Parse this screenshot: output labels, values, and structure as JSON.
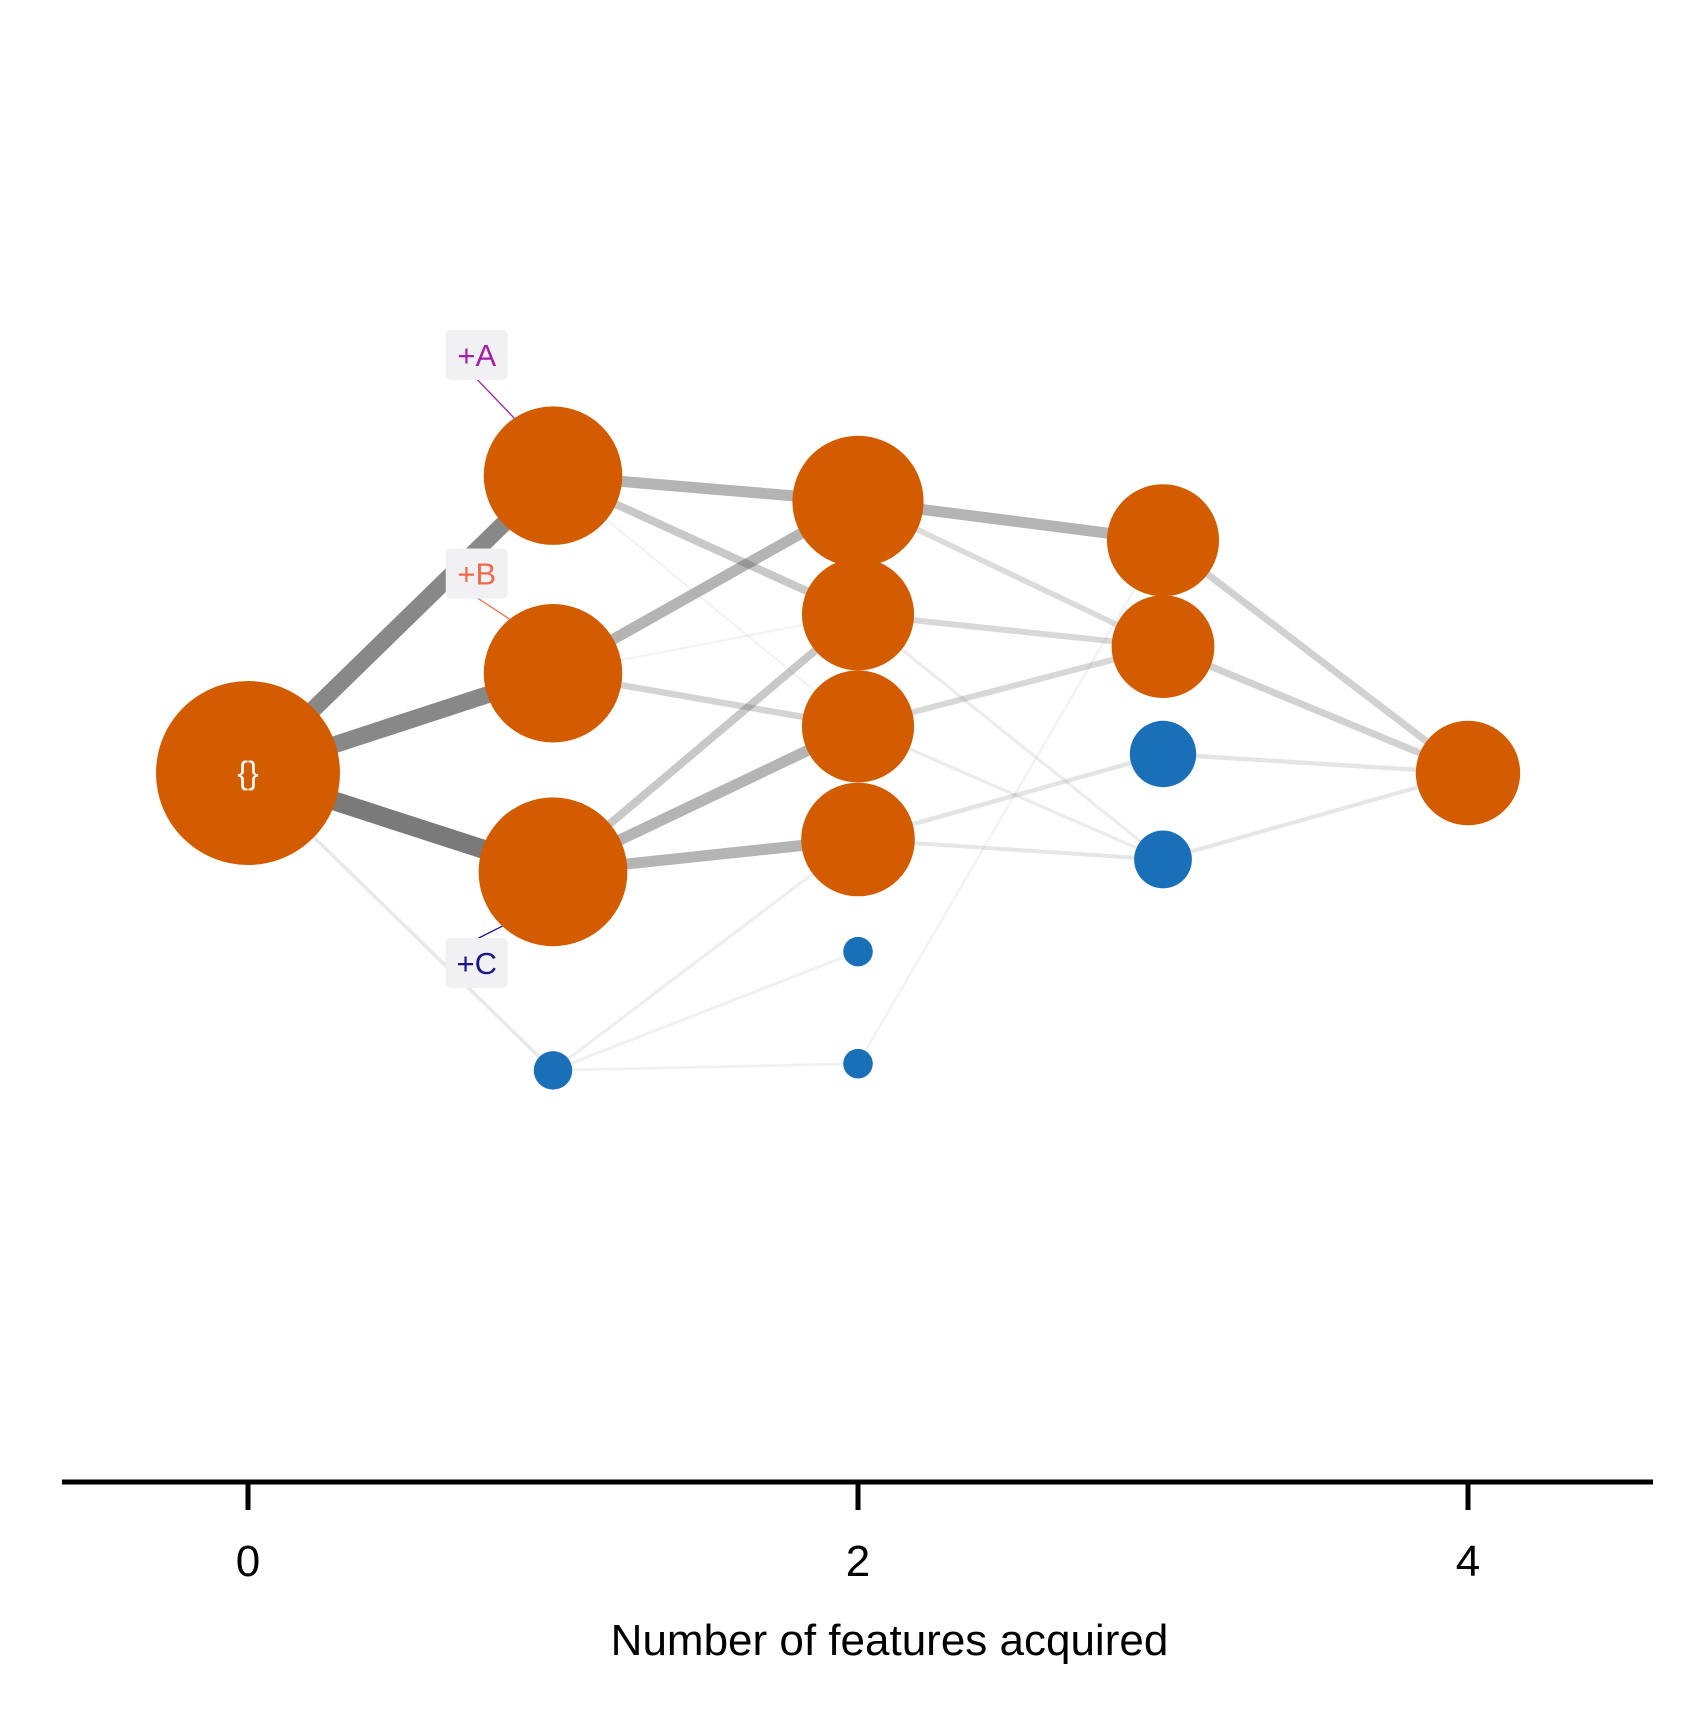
{
  "axis": {
    "title": "Number of features acquired",
    "ticks": [
      "0",
      "2",
      "4"
    ],
    "tick_values": [
      0,
      2,
      4
    ],
    "xlim": [
      -0.6,
      4.6
    ],
    "color": "#000000"
  },
  "colors": {
    "node_primary": "#d35c00",
    "node_secondary": "#1a70b8",
    "edge": "#555555",
    "label_bg": "#f1f0f2"
  },
  "nodes": [
    {
      "id": "n0",
      "level": 0,
      "row": 0,
      "weight": 1.0,
      "kind": "primary",
      "label": "{}"
    },
    {
      "id": "n1a",
      "level": 1,
      "row": 1.565,
      "weight": 0.55,
      "kind": "primary"
    },
    {
      "id": "n1b",
      "level": 1,
      "row": 0.525,
      "weight": 0.55,
      "kind": "primary"
    },
    {
      "id": "n1c",
      "level": 1,
      "row": -0.52,
      "weight": 0.64,
      "kind": "primary"
    },
    {
      "id": "n1d",
      "level": 1,
      "row": -1.565,
      "weight": 0.03,
      "kind": "secondary"
    },
    {
      "id": "n2a",
      "level": 2,
      "row": 1.43,
      "weight": 0.49,
      "kind": "primary"
    },
    {
      "id": "n2b",
      "level": 2,
      "row": 0.835,
      "weight": 0.35,
      "kind": "primary"
    },
    {
      "id": "n2c",
      "level": 2,
      "row": 0.245,
      "weight": 0.35,
      "kind": "primary"
    },
    {
      "id": "n2d",
      "level": 2,
      "row": -0.35,
      "weight": 0.36,
      "kind": "primary"
    },
    {
      "id": "n2e",
      "level": 2,
      "row": -0.94,
      "weight": 0.015,
      "kind": "secondary"
    },
    {
      "id": "n2f",
      "level": 2,
      "row": -1.53,
      "weight": 0.015,
      "kind": "secondary"
    },
    {
      "id": "n3a",
      "level": 3,
      "row": 1.225,
      "weight": 0.35,
      "kind": "primary"
    },
    {
      "id": "n3b",
      "level": 3,
      "row": 0.665,
      "weight": 0.29,
      "kind": "primary"
    },
    {
      "id": "n3c",
      "level": 3,
      "row": 0.1,
      "weight": 0.11,
      "kind": "secondary"
    },
    {
      "id": "n3d",
      "level": 3,
      "row": -0.455,
      "weight": 0.08,
      "kind": "secondary"
    },
    {
      "id": "n4a",
      "level": 4,
      "row": 0,
      "weight": 0.3,
      "kind": "primary"
    }
  ],
  "edges": [
    {
      "from": "n0",
      "to": "n1a",
      "w": 0.75
    },
    {
      "from": "n0",
      "to": "n1b",
      "w": 0.75
    },
    {
      "from": "n0",
      "to": "n1c",
      "w": 0.85
    },
    {
      "from": "n0",
      "to": "n1d",
      "w": 0.08
    },
    {
      "from": "n1a",
      "to": "n2a",
      "w": 0.45
    },
    {
      "from": "n1a",
      "to": "n2b",
      "w": 0.3
    },
    {
      "from": "n1a",
      "to": "n2c",
      "w": 0.01
    },
    {
      "from": "n1b",
      "to": "n2a",
      "w": 0.45
    },
    {
      "from": "n1b",
      "to": "n2c",
      "w": 0.22
    },
    {
      "from": "n1b",
      "to": "n2b",
      "w": 0.01
    },
    {
      "from": "n1c",
      "to": "n2b",
      "w": 0.3
    },
    {
      "from": "n1c",
      "to": "n2c",
      "w": 0.45
    },
    {
      "from": "n1c",
      "to": "n2d",
      "w": 0.45
    },
    {
      "from": "n1d",
      "to": "n2d",
      "w": 0.05
    },
    {
      "from": "n1d",
      "to": "n2e",
      "w": 0.04
    },
    {
      "from": "n1d",
      "to": "n2f",
      "w": 0.03
    },
    {
      "from": "n2a",
      "to": "n3a",
      "w": 0.45
    },
    {
      "from": "n2a",
      "to": "n3b",
      "w": 0.18
    },
    {
      "from": "n2b",
      "to": "n3b",
      "w": 0.2
    },
    {
      "from": "n2b",
      "to": "n3d",
      "w": 0.06
    },
    {
      "from": "n2c",
      "to": "n3b",
      "w": 0.2
    },
    {
      "from": "n2c",
      "to": "n3d",
      "w": 0.06
    },
    {
      "from": "n2d",
      "to": "n3c",
      "w": 0.12
    },
    {
      "from": "n2d",
      "to": "n3d",
      "w": 0.1
    },
    {
      "from": "n2f",
      "to": "n3a",
      "w": 0.02
    },
    {
      "from": "n3a",
      "to": "n4a",
      "w": 0.25
    },
    {
      "from": "n3b",
      "to": "n4a",
      "w": 0.25
    },
    {
      "from": "n3c",
      "to": "n4a",
      "w": 0.12
    },
    {
      "from": "n3d",
      "to": "n4a",
      "w": 0.1
    }
  ],
  "labels": [
    {
      "text": "+A",
      "color": "#a020a6",
      "node": "n1a",
      "row": 2.2,
      "level": 0.75
    },
    {
      "text": "+B",
      "color": "#ee6a4c",
      "node": "n1b",
      "row": 1.05,
      "level": 0.75
    },
    {
      "text": "+C",
      "color": "#1a168c",
      "node": "n1c",
      "row": -1.0,
      "level": 0.75
    }
  ]
}
